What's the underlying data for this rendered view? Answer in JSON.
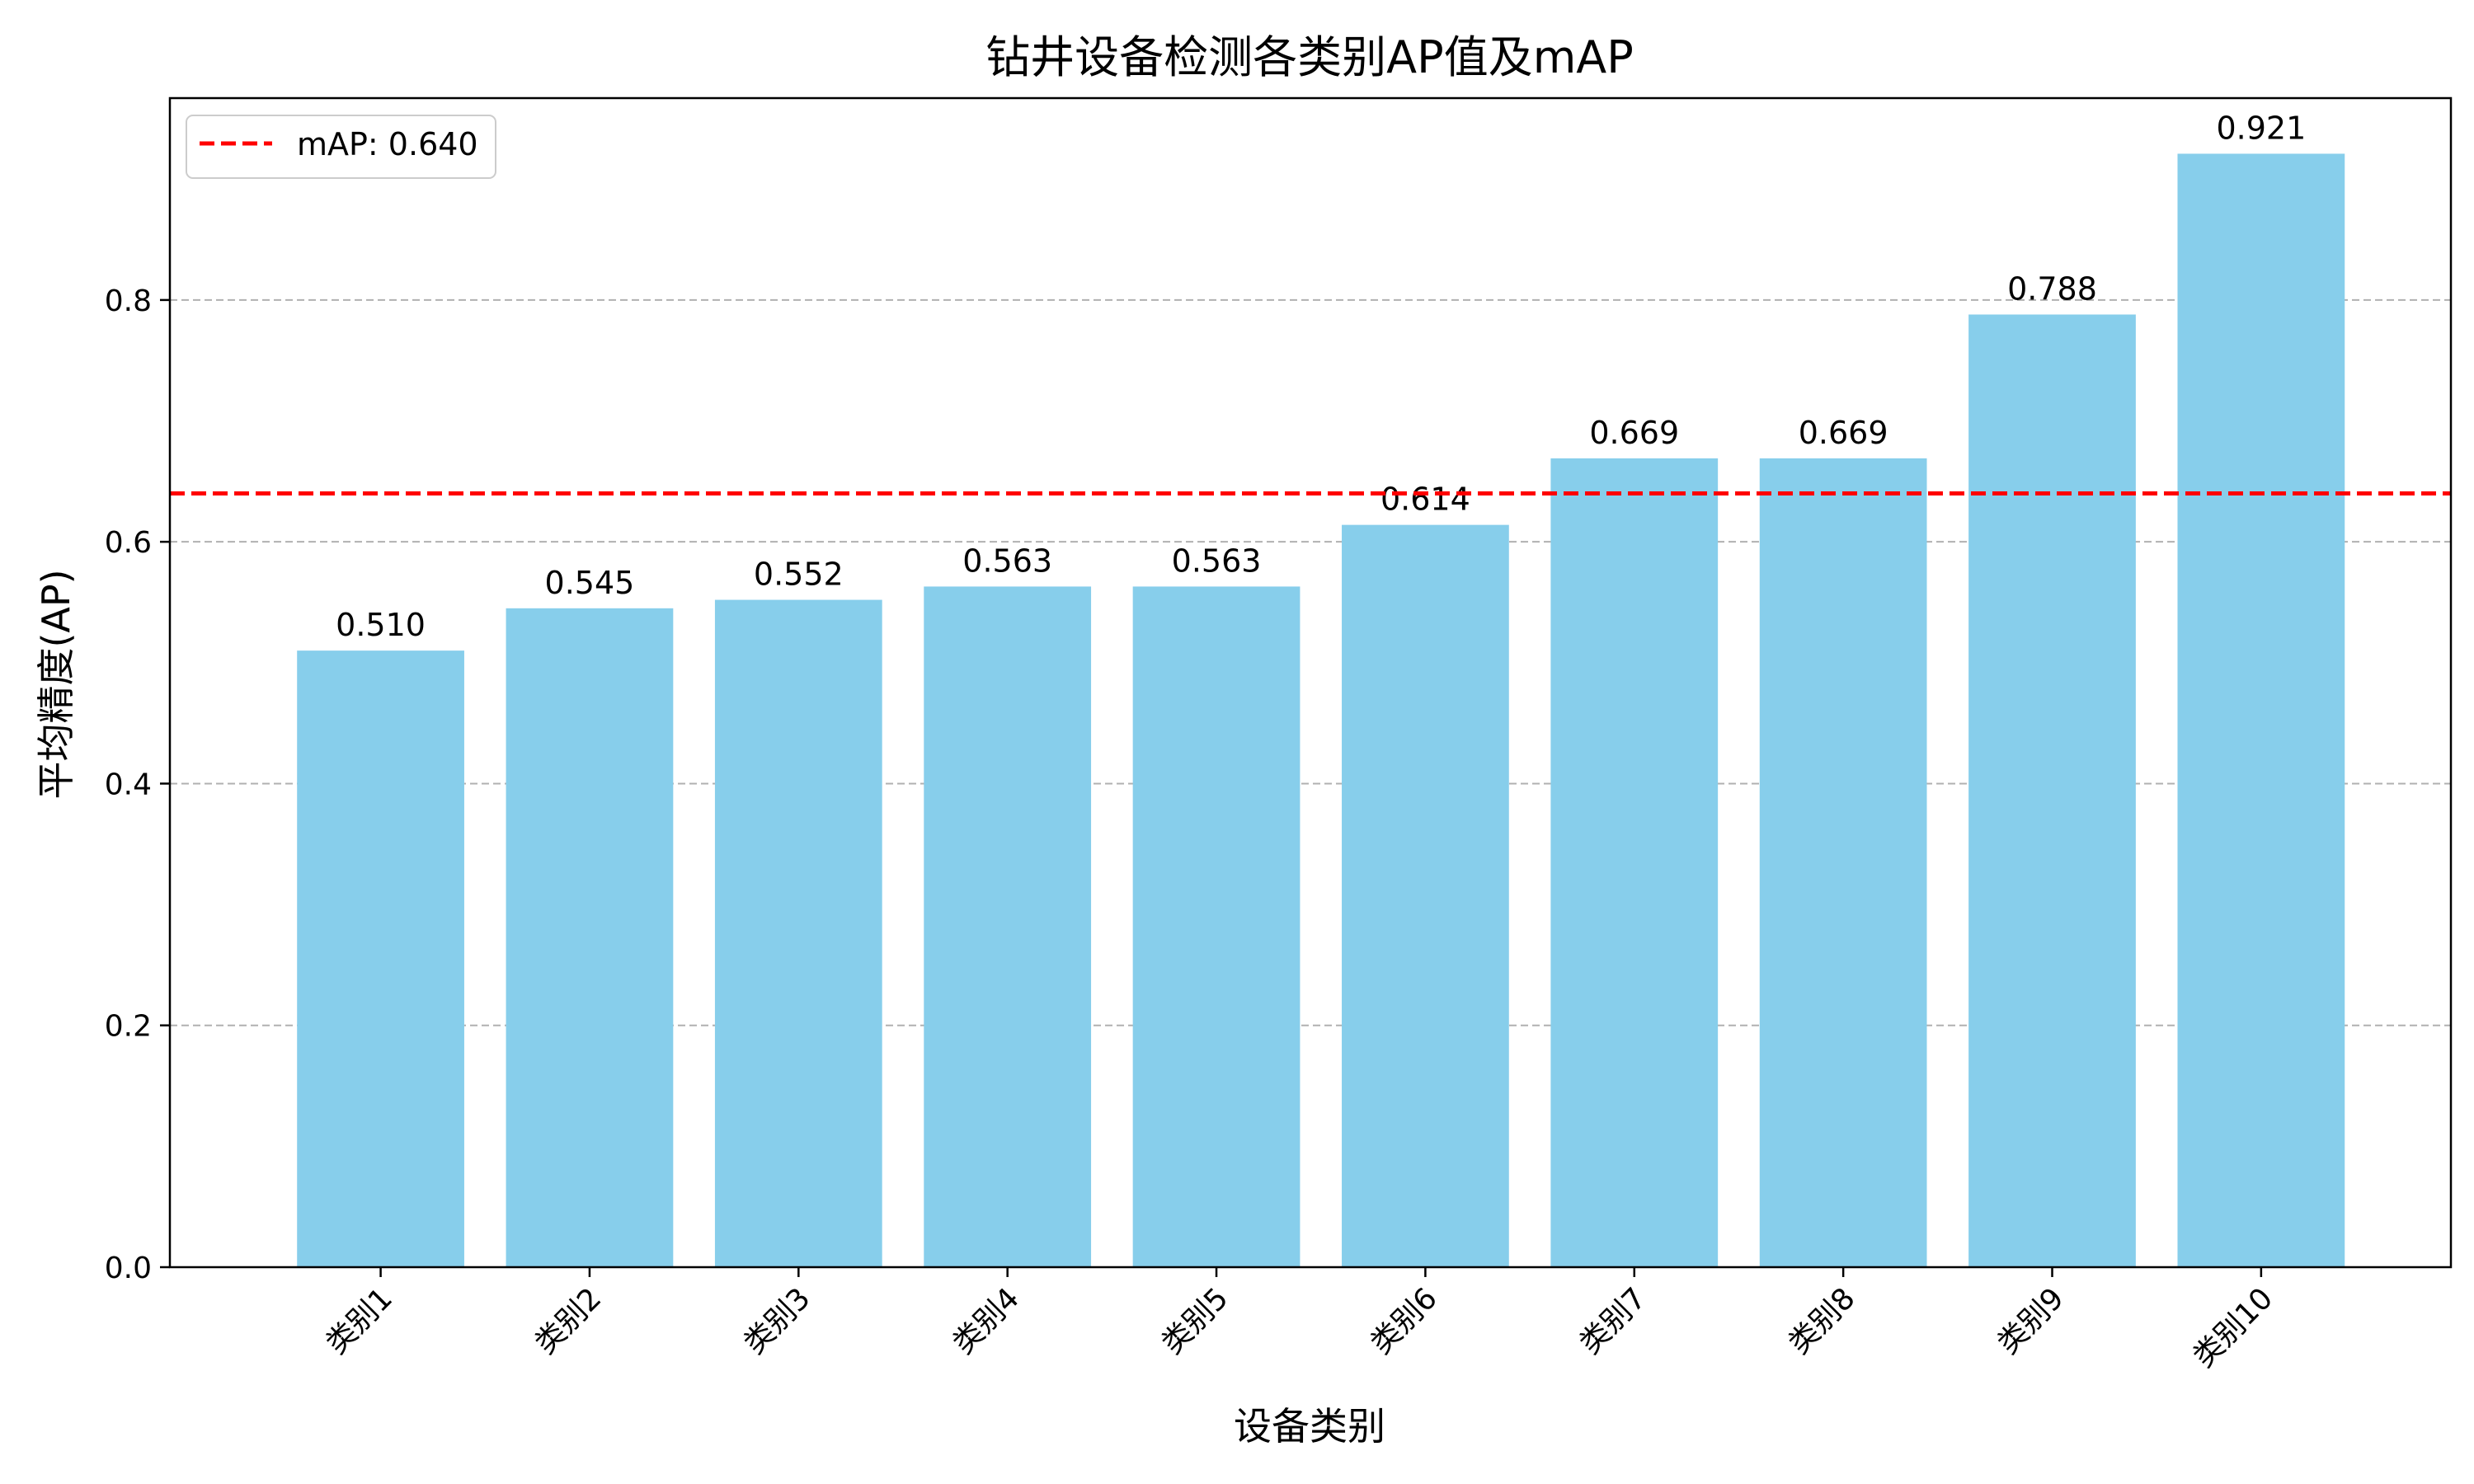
{
  "chart_data": {
    "type": "bar",
    "title": "钻井设备检测各类别AP值及mAP",
    "xlabel": "设备类别",
    "ylabel": "平均精度(AP)",
    "categories": [
      "类别1",
      "类别2",
      "类别3",
      "类别4",
      "类别5",
      "类别6",
      "类别7",
      "类别8",
      "类别9",
      "类别10"
    ],
    "values": [
      0.51,
      0.545,
      0.552,
      0.563,
      0.563,
      0.614,
      0.669,
      0.669,
      0.788,
      0.921
    ],
    "value_labels": [
      "0.510",
      "0.545",
      "0.552",
      "0.563",
      "0.563",
      "0.614",
      "0.669",
      "0.669",
      "0.788",
      "0.921"
    ],
    "ylim": [
      0,
      0.967
    ],
    "yticks": [
      0.0,
      0.2,
      0.4,
      0.6,
      0.8
    ],
    "ytick_labels": [
      "0.0",
      "0.2",
      "0.4",
      "0.6",
      "0.8"
    ],
    "grid": "y, dashed",
    "reference_line": {
      "value": 0.64,
      "label": "mAP: 0.640",
      "style": "dashed"
    },
    "legend": {
      "placement": "top-left",
      "entries": [
        "mAP: 0.640"
      ]
    },
    "colors": {
      "bar": "#87CEEB",
      "reference_line": "#FF0000",
      "grid": "#B0B0B0"
    }
  }
}
